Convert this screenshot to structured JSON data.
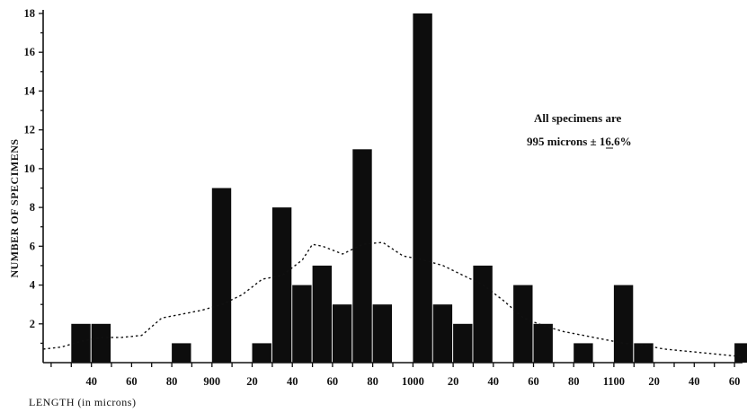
{
  "chart_data": {
    "type": "bar",
    "title": "",
    "xlabel": "LENGTH (in microns)",
    "ylabel": "NUMBER OF SPECIMENS",
    "ylim": [
      0,
      18
    ],
    "xlim": [
      816,
      1164
    ],
    "bin_width": 10,
    "grid": false,
    "legend": "none",
    "y_ticks": [
      2,
      4,
      6,
      8,
      10,
      12,
      14,
      16,
      18
    ],
    "x_ticks": [
      {
        "value": 840,
        "label": "40"
      },
      {
        "value": 860,
        "label": "60"
      },
      {
        "value": 880,
        "label": "80"
      },
      {
        "value": 900,
        "label": "900"
      },
      {
        "value": 920,
        "label": "20"
      },
      {
        "value": 940,
        "label": "40"
      },
      {
        "value": 960,
        "label": "60"
      },
      {
        "value": 980,
        "label": "80"
      },
      {
        "value": 1000,
        "label": "1000"
      },
      {
        "value": 1020,
        "label": "20"
      },
      {
        "value": 1040,
        "label": "40"
      },
      {
        "value": 1060,
        "label": "60"
      },
      {
        "value": 1080,
        "label": "80"
      },
      {
        "value": 1100,
        "label": "1100"
      },
      {
        "value": 1120,
        "label": "20"
      },
      {
        "value": 1140,
        "label": "40"
      },
      {
        "value": 1160,
        "label": "60"
      }
    ],
    "bins": [
      {
        "x": 830,
        "count": 2
      },
      {
        "x": 840,
        "count": 2
      },
      {
        "x": 880,
        "count": 1
      },
      {
        "x": 900,
        "count": 9
      },
      {
        "x": 920,
        "count": 1
      },
      {
        "x": 930,
        "count": 8
      },
      {
        "x": 940,
        "count": 4
      },
      {
        "x": 950,
        "count": 5
      },
      {
        "x": 960,
        "count": 3
      },
      {
        "x": 970,
        "count": 11
      },
      {
        "x": 980,
        "count": 3
      },
      {
        "x": 1000,
        "count": 18
      },
      {
        "x": 1010,
        "count": 3
      },
      {
        "x": 1020,
        "count": 2
      },
      {
        "x": 1030,
        "count": 5
      },
      {
        "x": 1050,
        "count": 4
      },
      {
        "x": 1060,
        "count": 2
      },
      {
        "x": 1080,
        "count": 1
      },
      {
        "x": 1100,
        "count": 4
      },
      {
        "x": 1110,
        "count": 1
      },
      {
        "x": 1160,
        "count": 1
      }
    ],
    "curve": {
      "style": "dotted",
      "x": [
        816,
        825,
        835,
        845,
        855,
        865,
        875,
        885,
        895,
        905,
        915,
        925,
        935,
        945,
        950,
        955,
        965,
        975,
        985,
        995,
        1005,
        1015,
        1025,
        1035,
        1045,
        1055,
        1065,
        1075,
        1085,
        1095,
        1105,
        1115,
        1125,
        1135,
        1145,
        1155,
        1164
      ],
      "y": [
        0.7,
        0.8,
        1.1,
        1.3,
        1.3,
        1.4,
        2.3,
        2.5,
        2.7,
        3.0,
        3.5,
        4.3,
        4.5,
        5.3,
        6.1,
        6.0,
        5.6,
        6.1,
        6.2,
        5.5,
        5.3,
        5.0,
        4.5,
        4.0,
        3.2,
        2.3,
        1.9,
        1.6,
        1.4,
        1.2,
        1.0,
        0.9,
        0.7,
        0.6,
        0.5,
        0.4,
        0.3
      ]
    },
    "annotations": [
      "All specimens are",
      "995 microns ± 16.6%"
    ]
  }
}
